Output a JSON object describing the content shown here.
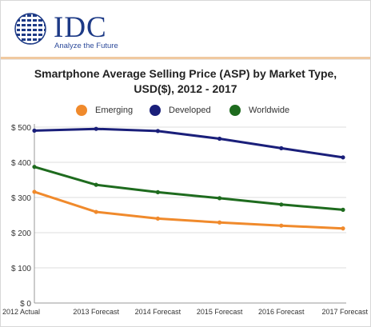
{
  "brand": {
    "name": "IDC",
    "tagline": "Analyze the Future",
    "color": "#1d3a86"
  },
  "chart_data": {
    "type": "line",
    "title": "Smartphone Average Selling Price (ASP) by Market Type, USD($), 2012 - 2017",
    "title_lines": [
      "Smartphone Average Selling Price (ASP) by Market Type,",
      "USD($), 2012 - 2017"
    ],
    "categories": [
      "2012 Actual",
      "2013 Forecast",
      "2014 Forecast",
      "2015 Forecast",
      "2016 Forecast",
      "2017 Forecast"
    ],
    "series": [
      {
        "name": "Emerging",
        "color": "#f08a2c",
        "values": [
          316,
          259,
          240,
          229,
          220,
          212
        ]
      },
      {
        "name": "Developed",
        "color": "#1a1f7a",
        "values": [
          490,
          495,
          489,
          467,
          440,
          414
        ]
      },
      {
        "name": "Worldwide",
        "color": "#1e6b1e",
        "values": [
          387,
          336,
          315,
          298,
          280,
          265
        ]
      }
    ],
    "ylim": [
      0,
      500
    ],
    "yticks": [
      "$ 0",
      "$ 100",
      "$ 200",
      "$ 300",
      "$ 400",
      "$ 500"
    ],
    "ytick_values": [
      0,
      100,
      200,
      300,
      400,
      500
    ],
    "grid": true,
    "legend_position": "top"
  }
}
